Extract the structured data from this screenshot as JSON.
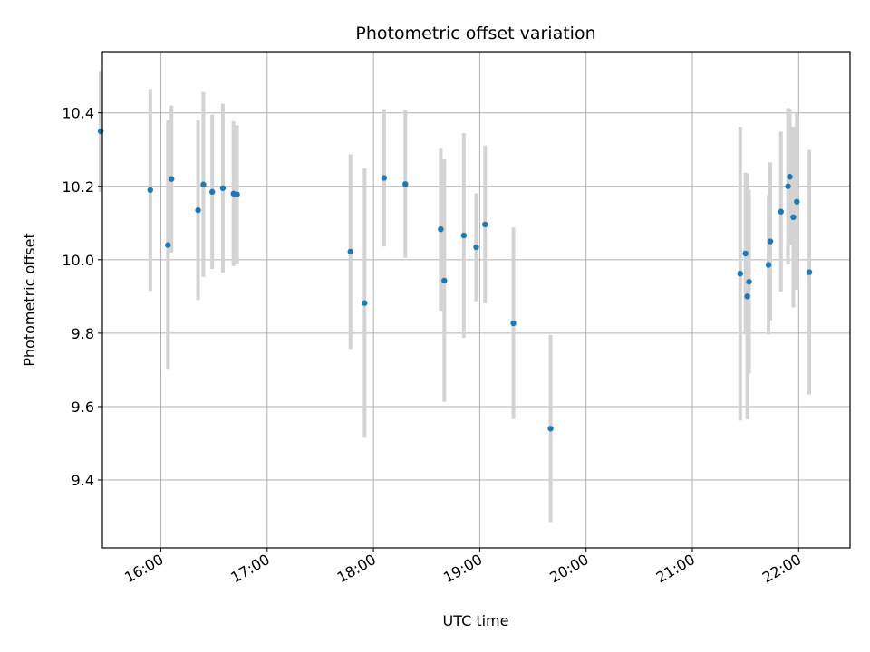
{
  "chart_data": {
    "type": "scatter",
    "title": "Photometric offset variation",
    "xlabel": "UTC time",
    "ylabel": "Photometric offset",
    "xlim": [
      "15:27",
      "22:29"
    ],
    "ylim": [
      9.215,
      10.567
    ],
    "x_ticks": [
      "16:00",
      "17:00",
      "18:00",
      "19:00",
      "20:00",
      "21:00",
      "22:00"
    ],
    "y_ticks": [
      9.4,
      9.6,
      9.8,
      10.0,
      10.2,
      10.4
    ],
    "grid": true,
    "colors": {
      "points": "#1f77b4",
      "errorbars": "#d3d3d3",
      "grid": "#b0b0b0"
    },
    "series": [
      {
        "points": [
          {
            "x": "15:26",
            "y": 10.35,
            "err": 0.165
          },
          {
            "x": "15:54",
            "y": 10.19,
            "err": 0.275
          },
          {
            "x": "16:04",
            "y": 10.04,
            "err": 0.34
          },
          {
            "x": "16:06",
            "y": 10.22,
            "err": 0.2
          },
          {
            "x": "16:21",
            "y": 10.135,
            "err": 0.245
          },
          {
            "x": "16:24",
            "y": 10.205,
            "err": 0.252
          },
          {
            "x": "16:29",
            "y": 10.185,
            "err": 0.21
          },
          {
            "x": "16:35",
            "y": 10.195,
            "err": 0.23
          },
          {
            "x": "16:41",
            "y": 10.18,
            "err": 0.197
          },
          {
            "x": "16:43",
            "y": 10.178,
            "err": 0.188
          },
          {
            "x": "17:47",
            "y": 10.022,
            "err": 0.265
          },
          {
            "x": "17:55",
            "y": 9.882,
            "err": 0.367
          },
          {
            "x": "18:06",
            "y": 10.223,
            "err": 0.187
          },
          {
            "x": "18:18",
            "y": 10.206,
            "err": 0.201
          },
          {
            "x": "18:38",
            "y": 10.083,
            "err": 0.222
          },
          {
            "x": "18:40",
            "y": 9.943,
            "err": 0.33
          },
          {
            "x": "18:51",
            "y": 10.066,
            "err": 0.279
          },
          {
            "x": "18:58",
            "y": 10.034,
            "err": 0.147
          },
          {
            "x": "19:03",
            "y": 10.096,
            "err": 0.215
          },
          {
            "x": "19:19",
            "y": 9.827,
            "err": 0.261
          },
          {
            "x": "19:40",
            "y": 9.54,
            "err": 0.255
          },
          {
            "x": "21:27",
            "y": 9.962,
            "err": 0.4
          },
          {
            "x": "21:30",
            "y": 10.017,
            "err": 0.22
          },
          {
            "x": "21:31",
            "y": 9.9,
            "err": 0.335
          },
          {
            "x": "21:32",
            "y": 9.94,
            "err": 0.25
          },
          {
            "x": "21:43",
            "y": 9.986,
            "err": 0.19
          },
          {
            "x": "21:44",
            "y": 10.05,
            "err": 0.215
          },
          {
            "x": "21:50",
            "y": 10.131,
            "err": 0.218
          },
          {
            "x": "21:54",
            "y": 10.2,
            "err": 0.213
          },
          {
            "x": "21:55",
            "y": 10.226,
            "err": 0.185
          },
          {
            "x": "21:57",
            "y": 10.116,
            "err": 0.246
          },
          {
            "x": "21:59",
            "y": 10.158,
            "err": 0.24
          },
          {
            "x": "22:06",
            "y": 9.966,
            "err": 0.333
          }
        ]
      }
    ]
  }
}
